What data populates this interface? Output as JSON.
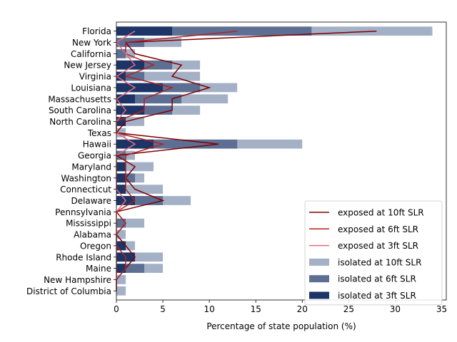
{
  "chart_data": {
    "type": "bar",
    "orientation": "horizontal",
    "title": "",
    "xlabel": "Percentage of state population (%)",
    "ylabel": "",
    "xlim": [
      0,
      35.5
    ],
    "xticks": [
      0,
      5,
      10,
      15,
      20,
      25,
      30,
      35
    ],
    "grid": false,
    "legend_position": "lower right",
    "categories": [
      "Florida",
      "New York",
      "California",
      "New Jersey",
      "Virginia",
      "Louisiana",
      "Massachusetts",
      "South Carolina",
      "North Carolina",
      "Texas",
      "Hawaii",
      "Georgia",
      "Maryland",
      "Washington",
      "Connecticut",
      "Delaware",
      "Pennsylvania",
      "Mississippi",
      "Alabama",
      "Oregon",
      "Rhode Island",
      "Maine",
      "New Hampshire",
      "District of Columbia"
    ],
    "bar_series": [
      {
        "name": "isolated at 10ft SLR",
        "color": "#a3b0c6",
        "values": [
          34,
          7,
          2,
          9,
          9,
          13,
          12,
          9,
          3,
          1,
          20,
          2,
          4,
          3,
          5,
          8,
          0,
          3,
          1,
          2,
          5,
          5,
          1,
          1
        ]
      },
      {
        "name": "isolated at 6ft SLR",
        "color": "#5e6f94",
        "values": [
          21,
          3,
          1,
          6,
          3,
          9,
          7,
          6,
          1,
          0,
          13,
          1,
          1,
          2,
          1,
          5,
          0,
          1,
          0,
          1,
          2,
          3,
          0,
          0
        ]
      },
      {
        "name": "isolated at 3ft SLR",
        "color": "#1c3566",
        "values": [
          6,
          0,
          0,
          3,
          1,
          5,
          2,
          3,
          1,
          0,
          4,
          0,
          1,
          1,
          1,
          2,
          0,
          0,
          0,
          1,
          2,
          1,
          0,
          0
        ]
      }
    ],
    "line_series": [
      {
        "name": "exposed at 10ft SLR",
        "color": "#800000",
        "values": [
          28,
          1,
          2,
          7,
          6,
          10,
          6,
          6,
          1,
          0,
          11,
          0,
          2,
          1,
          2,
          5,
          0,
          1,
          0,
          1,
          2,
          1,
          0,
          0
        ]
      },
      {
        "name": "exposed at 6ft SLR",
        "color": "#b22222",
        "values": [
          13,
          1,
          1,
          4,
          1,
          6,
          3,
          3,
          0,
          0,
          5,
          1,
          1,
          1,
          1,
          2,
          0,
          1,
          0,
          0,
          1,
          1,
          0,
          0
        ]
      },
      {
        "name": "exposed at 3ft SLR",
        "color": "#e66a7a",
        "values": [
          2,
          0,
          1,
          2,
          0,
          2,
          0,
          1,
          0,
          0,
          2,
          0,
          0,
          0,
          0,
          1,
          0,
          0,
          0,
          0,
          0,
          0,
          0,
          0
        ]
      }
    ]
  }
}
